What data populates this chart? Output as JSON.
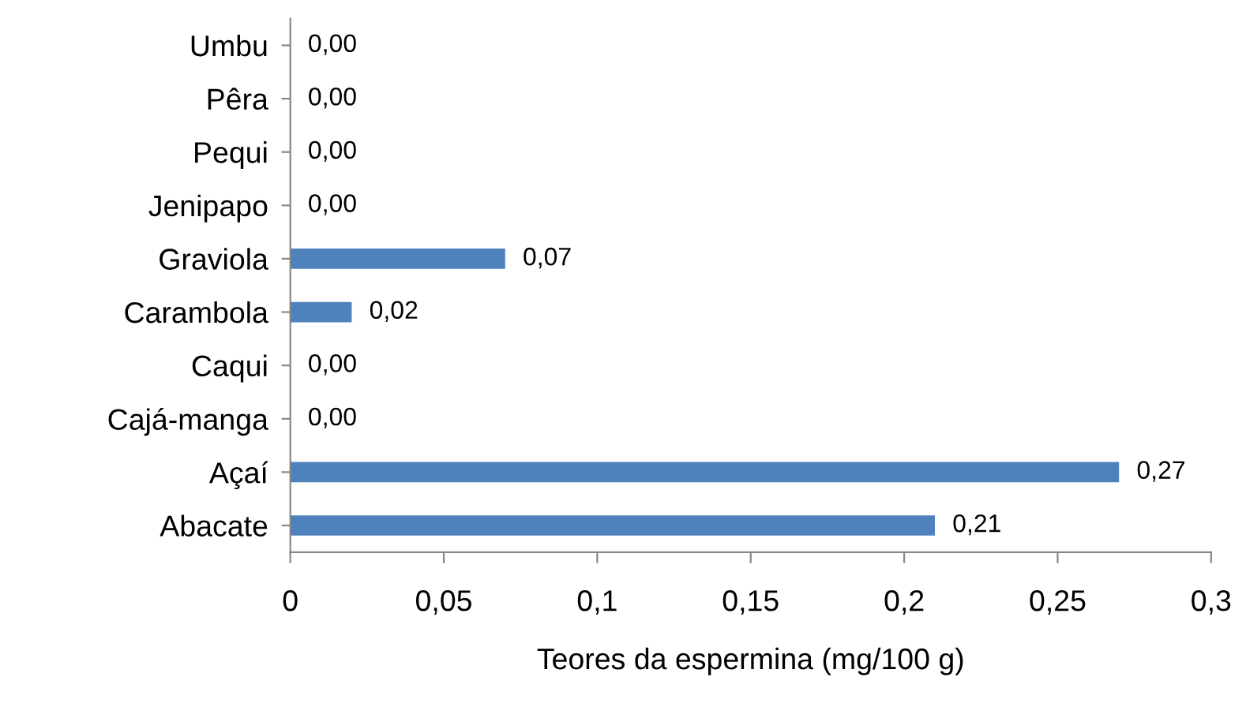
{
  "chart_data": {
    "type": "bar",
    "orientation": "horizontal",
    "xlabel": "Teores da espermina (mg/100 g)",
    "categories": [
      "Umbu",
      "Pêra",
      "Pequi",
      "Jenipapo",
      "Graviola",
      "Carambola",
      "Caqui",
      "Cajá-manga",
      "Açaí",
      "Abacate"
    ],
    "values": [
      0,
      0,
      0,
      0,
      0.07,
      0.02,
      0,
      0,
      0.27,
      0.21
    ],
    "value_labels": [
      "0,00",
      "0,00",
      "0,00",
      "0,00",
      "0,07",
      "0,02",
      "0,00",
      "0,00",
      "0,27",
      "0,21"
    ],
    "color": "#4f81bd",
    "xlim": [
      0,
      0.3
    ],
    "xticks": [
      0,
      {
        "value": 0.05,
        "label": "0,05"
      },
      {
        "value": 0.1,
        "label": "0,1"
      },
      {
        "value": 0.15,
        "label": "0,15"
      },
      {
        "value": 0.2,
        "label": "0,2"
      },
      {
        "value": 0.25,
        "label": "0,25"
      },
      {
        "value": 0.3,
        "label": "0,3"
      }
    ],
    "grid": false,
    "legend": false
  }
}
